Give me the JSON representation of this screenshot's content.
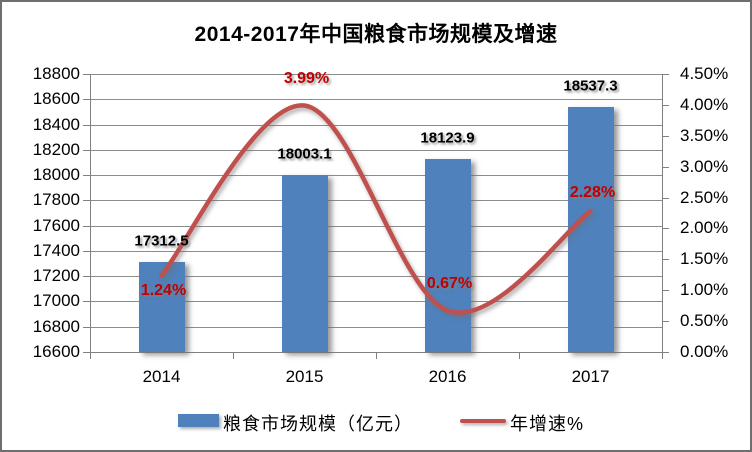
{
  "chart_data": {
    "type": "bar",
    "title": "2014-2017年中国粮食市场规模及增速",
    "categories": [
      "2014",
      "2015",
      "2016",
      "2017"
    ],
    "series": [
      {
        "name": "粮食市场规模（亿元）",
        "kind": "bar",
        "axis": "left",
        "color": "#4F81BD",
        "values": [
          17312.5,
          18003.1,
          18123.9,
          18537.3
        ],
        "data_labels": [
          "17312.5",
          "18003.1",
          "18123.9",
          "18537.3"
        ],
        "data_label_color": "#000000"
      },
      {
        "name": "年增速%",
        "kind": "line",
        "axis": "right",
        "color": "#C0504D",
        "values": [
          1.24,
          3.99,
          0.67,
          2.28
        ],
        "data_labels": [
          "1.24%",
          "3.99%",
          "0.67%",
          "2.28%"
        ],
        "data_label_color": "#C00000"
      }
    ],
    "axis_left": {
      "min": 16600,
      "max": 18800,
      "step": 200,
      "tick_labels": [
        "18800",
        "18600",
        "18400",
        "18200",
        "18000",
        "17800",
        "17600",
        "17400",
        "17200",
        "17000",
        "16800",
        "16600"
      ]
    },
    "axis_right": {
      "min": 0,
      "max": 4.5,
      "step": 0.5,
      "tick_labels": [
        "4.50%",
        "4.00%",
        "3.50%",
        "3.00%",
        "2.50%",
        "2.00%",
        "1.50%",
        "1.00%",
        "0.50%",
        "0.00%"
      ]
    },
    "legend": {
      "position": "bottom",
      "entries": [
        "粮食市场规模（亿元）",
        "年增速%"
      ]
    },
    "grid": true,
    "colors": {
      "gridline": "#8C8C8C",
      "axis": "#808080",
      "text": "#000000",
      "background": "#FFFFFF",
      "frame_border": "#6E6E6E"
    }
  }
}
